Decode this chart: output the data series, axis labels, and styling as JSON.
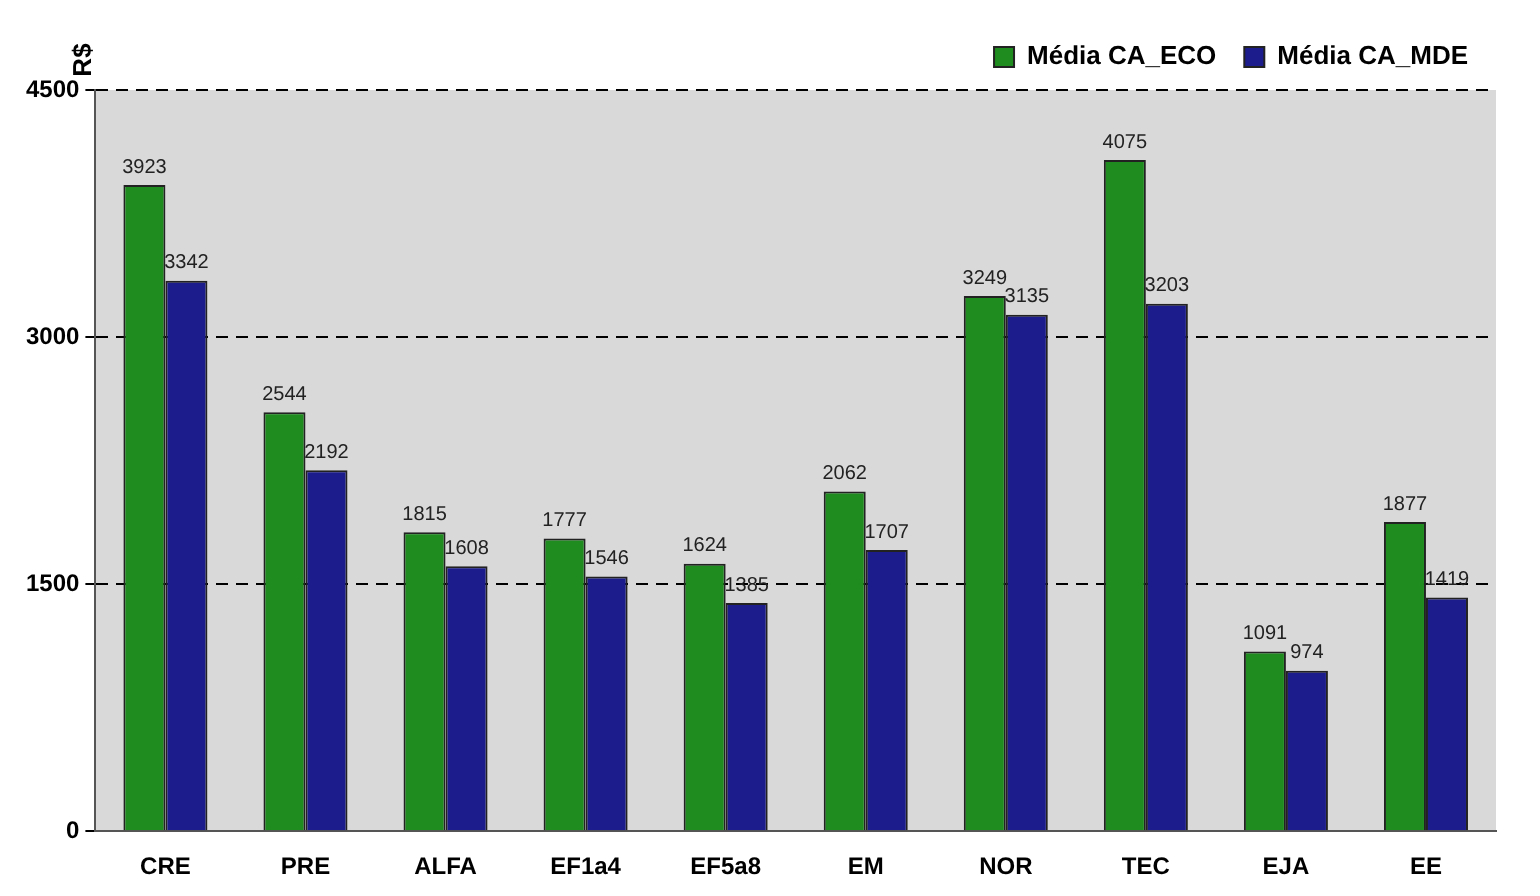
{
  "chart_data": {
    "type": "bar",
    "ylabel": "R$",
    "categories": [
      "CRE",
      "PRE",
      "ALFA",
      "EF1a4",
      "EF5a8",
      "EM",
      "NOR",
      "TEC",
      "EJA",
      "EE"
    ],
    "series": [
      {
        "name": "Média CA_ECO",
        "color": "#1e8c1e",
        "values": [
          3923,
          2544,
          1815,
          1777,
          1624,
          2062,
          3249,
          4075,
          1091,
          1877
        ]
      },
      {
        "name": "Média CA_MDE",
        "color": "#1c1c8c",
        "values": [
          3342,
          2192,
          1608,
          1546,
          1385,
          1707,
          3135,
          3203,
          974,
          1419
        ]
      }
    ],
    "ylim": [
      0,
      4500
    ],
    "yticks": [
      0,
      1500,
      3000,
      4500
    ],
    "grid": "y",
    "legend": "top right",
    "data_labels": true
  }
}
